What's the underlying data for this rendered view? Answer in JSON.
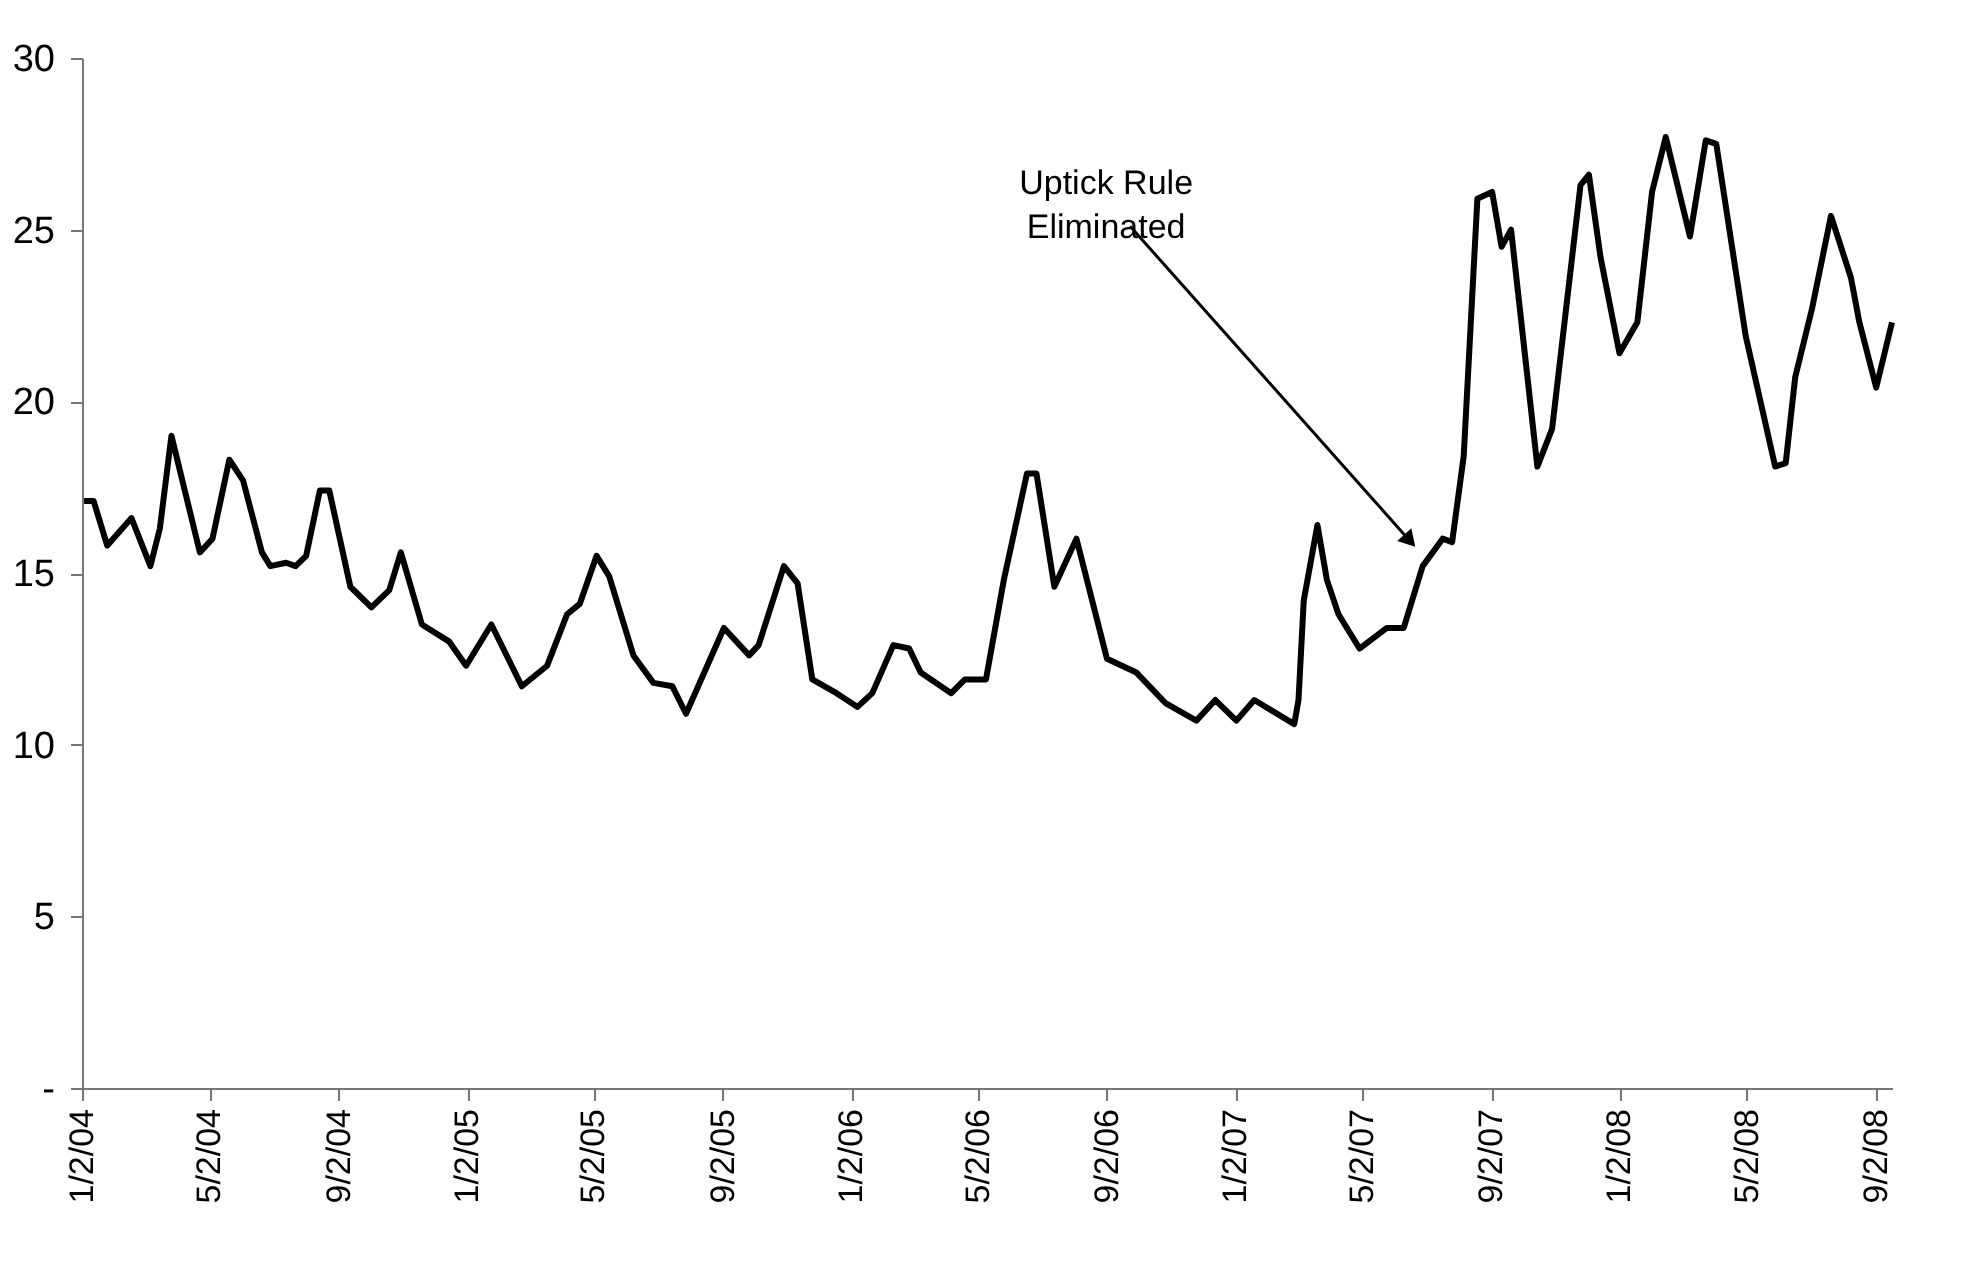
{
  "chart_data": {
    "type": "line",
    "color": "#000000",
    "grid": false,
    "line_style": "solid",
    "x": [
      "2004-01-04",
      "2004-01-13",
      "2004-01-26",
      "2004-02-18",
      "2004-03-07",
      "2004-03-16",
      "2004-03-27",
      "2004-04-23",
      "2004-05-05",
      "2004-05-21",
      "2004-06-03",
      "2004-06-21",
      "2004-06-29",
      "2004-07-14",
      "2004-07-23",
      "2004-08-02",
      "2004-08-15",
      "2004-08-24",
      "2004-09-13",
      "2004-10-03",
      "2004-10-20",
      "2004-10-31",
      "2004-11-20",
      "2004-12-16",
      "2005-01-01",
      "2005-01-25",
      "2005-02-23",
      "2005-03-19",
      "2005-04-07",
      "2005-04-19",
      "2005-05-05",
      "2005-05-17",
      "2005-06-09",
      "2005-06-28",
      "2005-07-16",
      "2005-07-29",
      "2005-09-03",
      "2005-09-27",
      "2005-10-06",
      "2005-10-30",
      "2005-11-12",
      "2005-11-26",
      "2005-12-19",
      "2006-01-08",
      "2006-01-22",
      "2006-02-11",
      "2006-02-26",
      "2006-03-09",
      "2006-04-07",
      "2006-04-20",
      "2006-05-10",
      "2006-05-27",
      "2006-06-18",
      "2006-06-27",
      "2006-07-14",
      "2006-08-04",
      "2006-09-02",
      "2006-09-30",
      "2006-10-28",
      "2006-11-26",
      "2006-12-14",
      "2007-01-03",
      "2007-01-20",
      "2007-02-27",
      "2007-03-03",
      "2007-03-08",
      "2007-03-21",
      "2007-03-30",
      "2007-04-10",
      "2007-04-30",
      "2007-05-26",
      "2007-06-11",
      "2007-06-29",
      "2007-07-18",
      "2007-07-27",
      "2007-08-07",
      "2007-08-20",
      "2007-09-03",
      "2007-09-12",
      "2007-09-21",
      "2007-10-16",
      "2007-10-30",
      "2007-11-26",
      "2007-12-04",
      "2007-12-15",
      "2008-01-02",
      "2008-01-19",
      "2008-02-02",
      "2008-02-15",
      "2008-03-09",
      "2008-03-24",
      "2008-04-03",
      "2008-05-01",
      "2008-05-29",
      "2008-06-08",
      "2008-06-17",
      "2008-07-03",
      "2008-07-21",
      "2008-08-09",
      "2008-08-17",
      "2008-09-02",
      "2008-09-17"
    ],
    "values": [
      17.1,
      17.1,
      15.8,
      16.6,
      15.2,
      16.3,
      19.0,
      15.6,
      16.0,
      18.3,
      17.7,
      15.6,
      15.2,
      15.3,
      15.2,
      15.5,
      17.4,
      17.4,
      14.6,
      14.0,
      14.5,
      15.6,
      13.5,
      13.0,
      12.3,
      13.5,
      11.7,
      12.3,
      13.8,
      14.1,
      15.5,
      14.9,
      12.6,
      11.8,
      11.7,
      10.9,
      13.4,
      12.6,
      12.9,
      15.2,
      14.7,
      11.9,
      11.5,
      11.1,
      11.5,
      12.9,
      12.8,
      12.1,
      11.5,
      11.9,
      11.9,
      14.8,
      17.9,
      17.9,
      14.6,
      16.0,
      12.5,
      12.1,
      11.2,
      10.7,
      11.3,
      10.7,
      11.3,
      10.6,
      11.3,
      14.2,
      16.4,
      14.8,
      13.8,
      12.8,
      13.4,
      13.4,
      15.2,
      16.0,
      15.9,
      18.4,
      25.9,
      26.1,
      24.5,
      25.0,
      18.1,
      19.2,
      26.3,
      26.6,
      24.2,
      21.4,
      22.3,
      26.1,
      27.7,
      24.8,
      27.6,
      27.5,
      21.9,
      18.1,
      18.2,
      20.7,
      22.7,
      25.4,
      23.6,
      22.3,
      20.4,
      22.3
    ],
    "xlim": [
      "2004-01-02",
      "2008-09-17"
    ],
    "xticks": [
      {
        "value": "2004-01-02",
        "label": "1/2/04"
      },
      {
        "value": "2004-05-02",
        "label": "5/2/04"
      },
      {
        "value": "2004-09-02",
        "label": "9/2/04"
      },
      {
        "value": "2005-01-02",
        "label": "1/2/05"
      },
      {
        "value": "2005-05-02",
        "label": "5/2/05"
      },
      {
        "value": "2005-09-02",
        "label": "9/2/05"
      },
      {
        "value": "2006-01-02",
        "label": "1/2/06"
      },
      {
        "value": "2006-05-02",
        "label": "5/2/06"
      },
      {
        "value": "2006-09-02",
        "label": "9/2/06"
      },
      {
        "value": "2007-01-02",
        "label": "1/2/07"
      },
      {
        "value": "2007-05-02",
        "label": "5/2/07"
      },
      {
        "value": "2007-09-02",
        "label": "9/2/07"
      },
      {
        "value": "2008-01-02",
        "label": "1/2/08"
      },
      {
        "value": "2008-05-02",
        "label": "5/2/08"
      },
      {
        "value": "2008-09-02",
        "label": "9/2/08"
      }
    ],
    "ylim": [
      0,
      30
    ],
    "yticks": [
      {
        "value": 0,
        "label": "-"
      },
      5,
      10,
      15,
      20,
      25,
      30
    ],
    "annotations": [
      {
        "text": "Uptick Rule\nEliminated",
        "x": "2007-06-15",
        "y": 16.0
      }
    ]
  }
}
